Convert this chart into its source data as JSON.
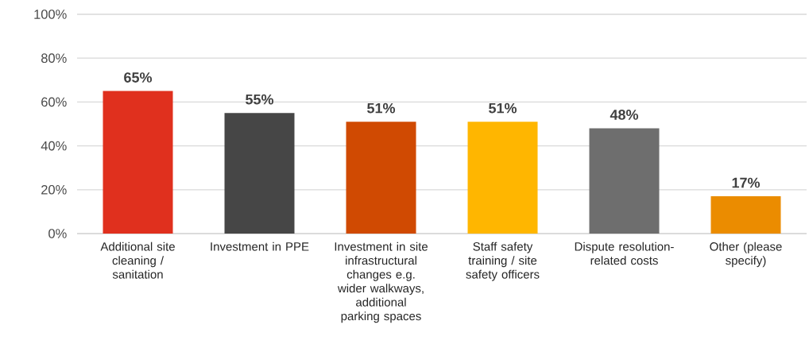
{
  "chart_data": {
    "type": "bar",
    "categories": [
      "Additional site cleaning / sanitation",
      "Investment in PPE",
      "Investment in site infrastructural changes e.g. wider walkways, additional parking spaces",
      "Staff safety training / site safety officers",
      "Dispute resolution-related costs",
      "Other (please specify)"
    ],
    "values": [
      65,
      55,
      51,
      51,
      48,
      17
    ],
    "colors": [
      "#e0301e",
      "#464646",
      "#d04a02",
      "#ffb600",
      "#6e6e6e",
      "#eb8c00"
    ],
    "value_labels": [
      "65%",
      "55%",
      "51%",
      "51%",
      "48%",
      "17%"
    ],
    "ylim": [
      0,
      100
    ],
    "yticks": [
      {
        "value": 0,
        "label": "0%"
      },
      {
        "value": 20,
        "label": "20%"
      },
      {
        "value": 40,
        "label": "40%"
      },
      {
        "value": 60,
        "label": "60%"
      },
      {
        "value": 80,
        "label": "80%"
      },
      {
        "value": 100,
        "label": "100%"
      }
    ],
    "grid": "y"
  }
}
